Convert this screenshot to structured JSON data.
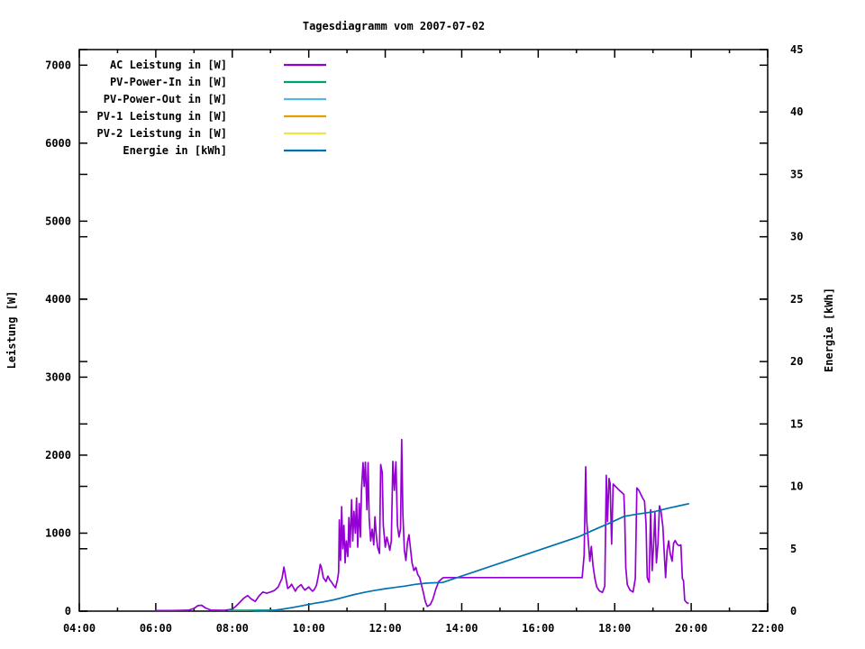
{
  "chart_data": {
    "type": "line",
    "title": "Tagesdiagramm vom 2007-07-02",
    "background": "#ffffff",
    "border_color": "#000000",
    "grid": false,
    "legend_position": "top-left-inside",
    "x_axis": {
      "min": 4,
      "max": 22,
      "major_ticks": [
        {
          "v": 4,
          "label": "04:00"
        },
        {
          "v": 6,
          "label": "06:00"
        },
        {
          "v": 8,
          "label": "08:00"
        },
        {
          "v": 10,
          "label": "10:00"
        },
        {
          "v": 12,
          "label": "12:00"
        },
        {
          "v": 14,
          "label": "14:00"
        },
        {
          "v": 16,
          "label": "16:00"
        },
        {
          "v": 18,
          "label": "18:00"
        },
        {
          "v": 20,
          "label": "20:00"
        },
        {
          "v": 22,
          "label": "22:00"
        }
      ],
      "minor_ticks": [
        5,
        7,
        9,
        11,
        13,
        15,
        17,
        19,
        21
      ]
    },
    "left_axis": {
      "label": "Leistung [W]",
      "min": 0,
      "max": 7200,
      "ticks": [
        0,
        1000,
        2000,
        3000,
        4000,
        5000,
        6000,
        7000
      ]
    },
    "right_axis": {
      "label": "Energie [kWh]",
      "min": 0,
      "max": 45,
      "ticks": [
        0,
        5,
        10,
        15,
        20,
        25,
        30,
        35,
        40,
        45
      ]
    },
    "series": [
      {
        "name": "AC Leistung in [W]",
        "color": "#9400d3",
        "axis": "left",
        "points": [
          [
            6.0,
            8
          ],
          [
            6.4,
            8
          ],
          [
            6.85,
            12
          ],
          [
            7.0,
            35
          ],
          [
            7.1,
            70
          ],
          [
            7.2,
            75
          ],
          [
            7.3,
            40
          ],
          [
            7.45,
            12
          ],
          [
            7.8,
            10
          ],
          [
            8.0,
            25
          ],
          [
            8.1,
            65
          ],
          [
            8.2,
            115
          ],
          [
            8.3,
            165
          ],
          [
            8.4,
            200
          ],
          [
            8.5,
            155
          ],
          [
            8.6,
            125
          ],
          [
            8.7,
            195
          ],
          [
            8.8,
            245
          ],
          [
            8.9,
            230
          ],
          [
            9.0,
            245
          ],
          [
            9.1,
            265
          ],
          [
            9.2,
            310
          ],
          [
            9.3,
            420
          ],
          [
            9.35,
            565
          ],
          [
            9.4,
            430
          ],
          [
            9.45,
            290
          ],
          [
            9.5,
            310
          ],
          [
            9.55,
            345
          ],
          [
            9.6,
            300
          ],
          [
            9.65,
            255
          ],
          [
            9.7,
            300
          ],
          [
            9.8,
            340
          ],
          [
            9.85,
            300
          ],
          [
            9.9,
            270
          ],
          [
            10.0,
            310
          ],
          [
            10.05,
            280
          ],
          [
            10.1,
            255
          ],
          [
            10.15,
            280
          ],
          [
            10.2,
            330
          ],
          [
            10.25,
            450
          ],
          [
            10.3,
            600
          ],
          [
            10.33,
            560
          ],
          [
            10.38,
            430
          ],
          [
            10.45,
            380
          ],
          [
            10.5,
            450
          ],
          [
            10.55,
            400
          ],
          [
            10.6,
            370
          ],
          [
            10.65,
            330
          ],
          [
            10.7,
            300
          ],
          [
            10.75,
            400
          ],
          [
            10.78,
            500
          ],
          [
            10.8,
            1170
          ],
          [
            10.83,
            650
          ],
          [
            10.86,
            1340
          ],
          [
            10.89,
            800
          ],
          [
            10.92,
            1100
          ],
          [
            10.95,
            620
          ],
          [
            10.98,
            900
          ],
          [
            11.02,
            700
          ],
          [
            11.05,
            1200
          ],
          [
            11.08,
            820
          ],
          [
            11.12,
            1430
          ],
          [
            11.15,
            900
          ],
          [
            11.18,
            1280
          ],
          [
            11.22,
            1000
          ],
          [
            11.25,
            1450
          ],
          [
            11.28,
            820
          ],
          [
            11.32,
            1380
          ],
          [
            11.35,
            950
          ],
          [
            11.38,
            1550
          ],
          [
            11.42,
            1905
          ],
          [
            11.45,
            1600
          ],
          [
            11.48,
            1910
          ],
          [
            11.52,
            1300
          ],
          [
            11.55,
            1905
          ],
          [
            11.58,
            1200
          ],
          [
            11.62,
            900
          ],
          [
            11.66,
            1050
          ],
          [
            11.7,
            850
          ],
          [
            11.73,
            1210
          ],
          [
            11.77,
            950
          ],
          [
            11.8,
            820
          ],
          [
            11.85,
            740
          ],
          [
            11.88,
            1880
          ],
          [
            11.92,
            1780
          ],
          [
            11.95,
            1100
          ],
          [
            12.0,
            820
          ],
          [
            12.04,
            950
          ],
          [
            12.08,
            870
          ],
          [
            12.12,
            780
          ],
          [
            12.16,
            900
          ],
          [
            12.2,
            1920
          ],
          [
            12.24,
            1550
          ],
          [
            12.28,
            1915
          ],
          [
            12.32,
            1100
          ],
          [
            12.36,
            950
          ],
          [
            12.4,
            1050
          ],
          [
            12.43,
            2200
          ],
          [
            12.46,
            1250
          ],
          [
            12.5,
            780
          ],
          [
            12.54,
            650
          ],
          [
            12.58,
            880
          ],
          [
            12.62,
            980
          ],
          [
            12.66,
            800
          ],
          [
            12.7,
            620
          ],
          [
            12.75,
            520
          ],
          [
            12.8,
            560
          ],
          [
            12.85,
            470
          ],
          [
            12.9,
            430
          ],
          [
            12.95,
            330
          ],
          [
            13.0,
            230
          ],
          [
            13.05,
            120
          ],
          [
            13.1,
            60
          ],
          [
            13.18,
            85
          ],
          [
            13.25,
            160
          ],
          [
            13.32,
            280
          ],
          [
            13.4,
            380
          ],
          [
            13.5,
            425
          ],
          [
            13.55,
            430
          ],
          [
            17.15,
            430
          ],
          [
            17.2,
            720
          ],
          [
            17.24,
            1850
          ],
          [
            17.27,
            1150
          ],
          [
            17.31,
            900
          ],
          [
            17.35,
            640
          ],
          [
            17.39,
            830
          ],
          [
            17.43,
            600
          ],
          [
            17.48,
            420
          ],
          [
            17.53,
            310
          ],
          [
            17.6,
            260
          ],
          [
            17.68,
            240
          ],
          [
            17.74,
            320
          ],
          [
            17.78,
            1740
          ],
          [
            17.81,
            1150
          ],
          [
            17.85,
            1700
          ],
          [
            17.88,
            1640
          ],
          [
            17.92,
            860
          ],
          [
            17.96,
            1630
          ],
          [
            18.02,
            1600
          ],
          [
            18.08,
            1570
          ],
          [
            18.14,
            1540
          ],
          [
            18.2,
            1515
          ],
          [
            18.24,
            1495
          ],
          [
            18.26,
            1220
          ],
          [
            18.29,
            560
          ],
          [
            18.33,
            340
          ],
          [
            18.4,
            270
          ],
          [
            18.48,
            245
          ],
          [
            18.54,
            420
          ],
          [
            18.58,
            1580
          ],
          [
            18.63,
            1550
          ],
          [
            18.68,
            1500
          ],
          [
            18.73,
            1450
          ],
          [
            18.78,
            1410
          ],
          [
            18.82,
            1120
          ],
          [
            18.85,
            430
          ],
          [
            18.9,
            370
          ],
          [
            18.94,
            1300
          ],
          [
            18.98,
            520
          ],
          [
            19.02,
            880
          ],
          [
            19.05,
            1270
          ],
          [
            19.09,
            620
          ],
          [
            19.13,
            860
          ],
          [
            19.17,
            1350
          ],
          [
            19.21,
            1280
          ],
          [
            19.26,
            1080
          ],
          [
            19.3,
            700
          ],
          [
            19.33,
            430
          ],
          [
            19.37,
            780
          ],
          [
            19.41,
            900
          ],
          [
            19.45,
            740
          ],
          [
            19.5,
            640
          ],
          [
            19.54,
            870
          ],
          [
            19.58,
            905
          ],
          [
            19.63,
            860
          ],
          [
            19.68,
            840
          ],
          [
            19.73,
            850
          ],
          [
            19.77,
            420
          ],
          [
            19.8,
            390
          ],
          [
            19.83,
            140
          ],
          [
            19.88,
            110
          ],
          [
            19.92,
            100
          ]
        ]
      },
      {
        "name": "PV-Power-In in [W]",
        "color": "#009e73",
        "axis": "left",
        "points": [
          [
            7.9,
            10
          ],
          [
            8.3,
            10
          ],
          [
            8.7,
            12
          ],
          [
            9.1,
            12
          ],
          [
            9.3,
            12
          ]
        ]
      },
      {
        "name": "PV-Power-Out in [W]",
        "color": "#56b4e9",
        "axis": "left",
        "points": []
      },
      {
        "name": "PV-1 Leistung in [W]",
        "color": "#e69f00",
        "axis": "left",
        "points": []
      },
      {
        "name": "PV-2 Leistung in [W]",
        "color": "#f0e442",
        "axis": "left",
        "points": []
      },
      {
        "name": "Energie in [kWh]",
        "color": "#0072b2",
        "axis": "right",
        "points": [
          [
            8.57,
            0
          ],
          [
            9.05,
            0.05
          ],
          [
            9.3,
            0.15
          ],
          [
            9.6,
            0.3
          ],
          [
            9.85,
            0.45
          ],
          [
            10.1,
            0.6
          ],
          [
            10.4,
            0.75
          ],
          [
            10.65,
            0.9
          ],
          [
            10.9,
            1.1
          ],
          [
            11.15,
            1.3
          ],
          [
            11.45,
            1.5
          ],
          [
            11.7,
            1.65
          ],
          [
            12.0,
            1.8
          ],
          [
            12.25,
            1.9
          ],
          [
            12.5,
            2.0
          ],
          [
            12.8,
            2.15
          ],
          [
            13.1,
            2.25
          ],
          [
            13.5,
            2.3
          ],
          [
            17.05,
            5.95
          ],
          [
            17.3,
            6.3
          ],
          [
            17.6,
            6.7
          ],
          [
            17.9,
            7.1
          ],
          [
            18.25,
            7.6
          ],
          [
            18.6,
            7.78
          ],
          [
            19.0,
            7.95
          ],
          [
            19.4,
            8.25
          ],
          [
            19.7,
            8.45
          ],
          [
            19.93,
            8.6
          ]
        ]
      }
    ]
  }
}
